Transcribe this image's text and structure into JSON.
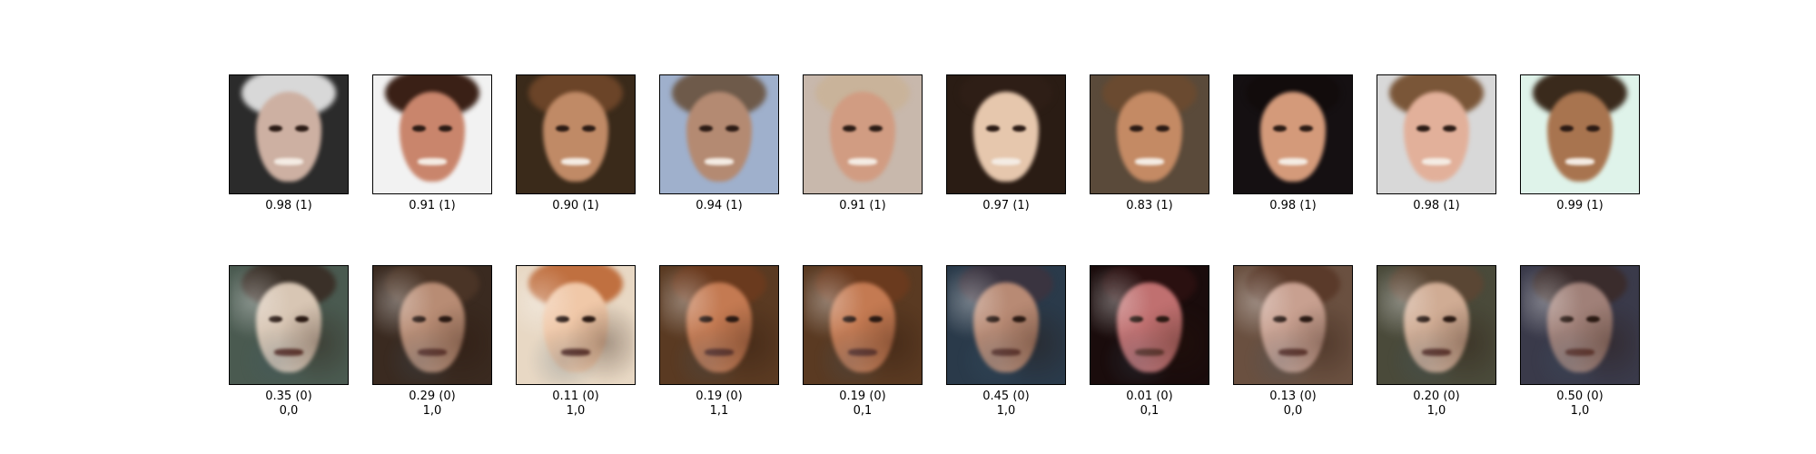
{
  "rows": [
    {
      "kind": "real",
      "items": [
        {
          "label": "0.98 (1)",
          "bg": "#2b2b2b",
          "skin": "#cdb0a2",
          "hair": "#d8d8d8"
        },
        {
          "label": "0.91 (1)",
          "bg": "#f2f2f2",
          "skin": "#c9856c",
          "hair": "#3a2016"
        },
        {
          "label": "0.90 (1)",
          "bg": "#3a2a1a",
          "skin": "#c08a66",
          "hair": "#6b4428"
        },
        {
          "label": "0.94 (1)",
          "bg": "#9fb0cc",
          "skin": "#b48a72",
          "hair": "#6e5a4a"
        },
        {
          "label": "0.91 (1)",
          "bg": "#c8b8ac",
          "skin": "#d19c82",
          "hair": "#c9b39a"
        },
        {
          "label": "0.97 (1)",
          "bg": "#2a1c14",
          "skin": "#e6c7ad",
          "hair": "#2e1e16"
        },
        {
          "label": "0.83 (1)",
          "bg": "#5a4a3a",
          "skin": "#c48a64",
          "hair": "#6a4a30"
        },
        {
          "label": "0.98 (1)",
          "bg": "#151012",
          "skin": "#d49a7a",
          "hair": "#120c0c"
        },
        {
          "label": "0.98 (1)",
          "bg": "#d8d8d8",
          "skin": "#e2b09a",
          "hair": "#7a5638"
        },
        {
          "label": "0.99 (1)",
          "bg": "#dff3ea",
          "skin": "#a8744f",
          "hair": "#3a2a1c"
        }
      ]
    },
    {
      "kind": "generated",
      "items": [
        {
          "label": "0.35 (0)",
          "sub": "0,0",
          "bg": "#4a5a50",
          "skin": "#d8c6b4",
          "hair": "#3a3028"
        },
        {
          "label": "0.29 (0)",
          "sub": "1,0",
          "bg": "#3a2a20",
          "skin": "#b88c74",
          "hair": "#4a3426"
        },
        {
          "label": "0.11 (0)",
          "sub": "1,0",
          "bg": "#e8d8c4",
          "skin": "#f0c8a8",
          "hair": "#c07040"
        },
        {
          "label": "0.19 (0)",
          "sub": "1,1",
          "bg": "#5a3a22",
          "skin": "#c47a52",
          "hair": "#6a3a1e"
        },
        {
          "label": "0.19 (0)",
          "sub": "0,1",
          "bg": "#5a3a22",
          "skin": "#c47a52",
          "hair": "#6a3a1e"
        },
        {
          "label": "0.45 (0)",
          "sub": "1,0",
          "bg": "#2a3a4a",
          "skin": "#b88a74",
          "hair": "#3a3440"
        },
        {
          "label": "0.01 (0)",
          "sub": "0,1",
          "bg": "#1a0c0c",
          "skin": "#c07070",
          "hair": "#2a1010"
        },
        {
          "label": "0.13 (0)",
          "sub": "0,0",
          "bg": "#6a5040",
          "skin": "#c8a090",
          "hair": "#5a3a2a"
        },
        {
          "label": "0.20 (0)",
          "sub": "1,0",
          "bg": "#4a4a3a",
          "skin": "#d0ac94",
          "hair": "#5a4634"
        },
        {
          "label": "0.50 (0)",
          "sub": "1,0",
          "bg": "#3a3a4a",
          "skin": "#a08078",
          "hair": "#3a2c2c"
        }
      ]
    }
  ]
}
